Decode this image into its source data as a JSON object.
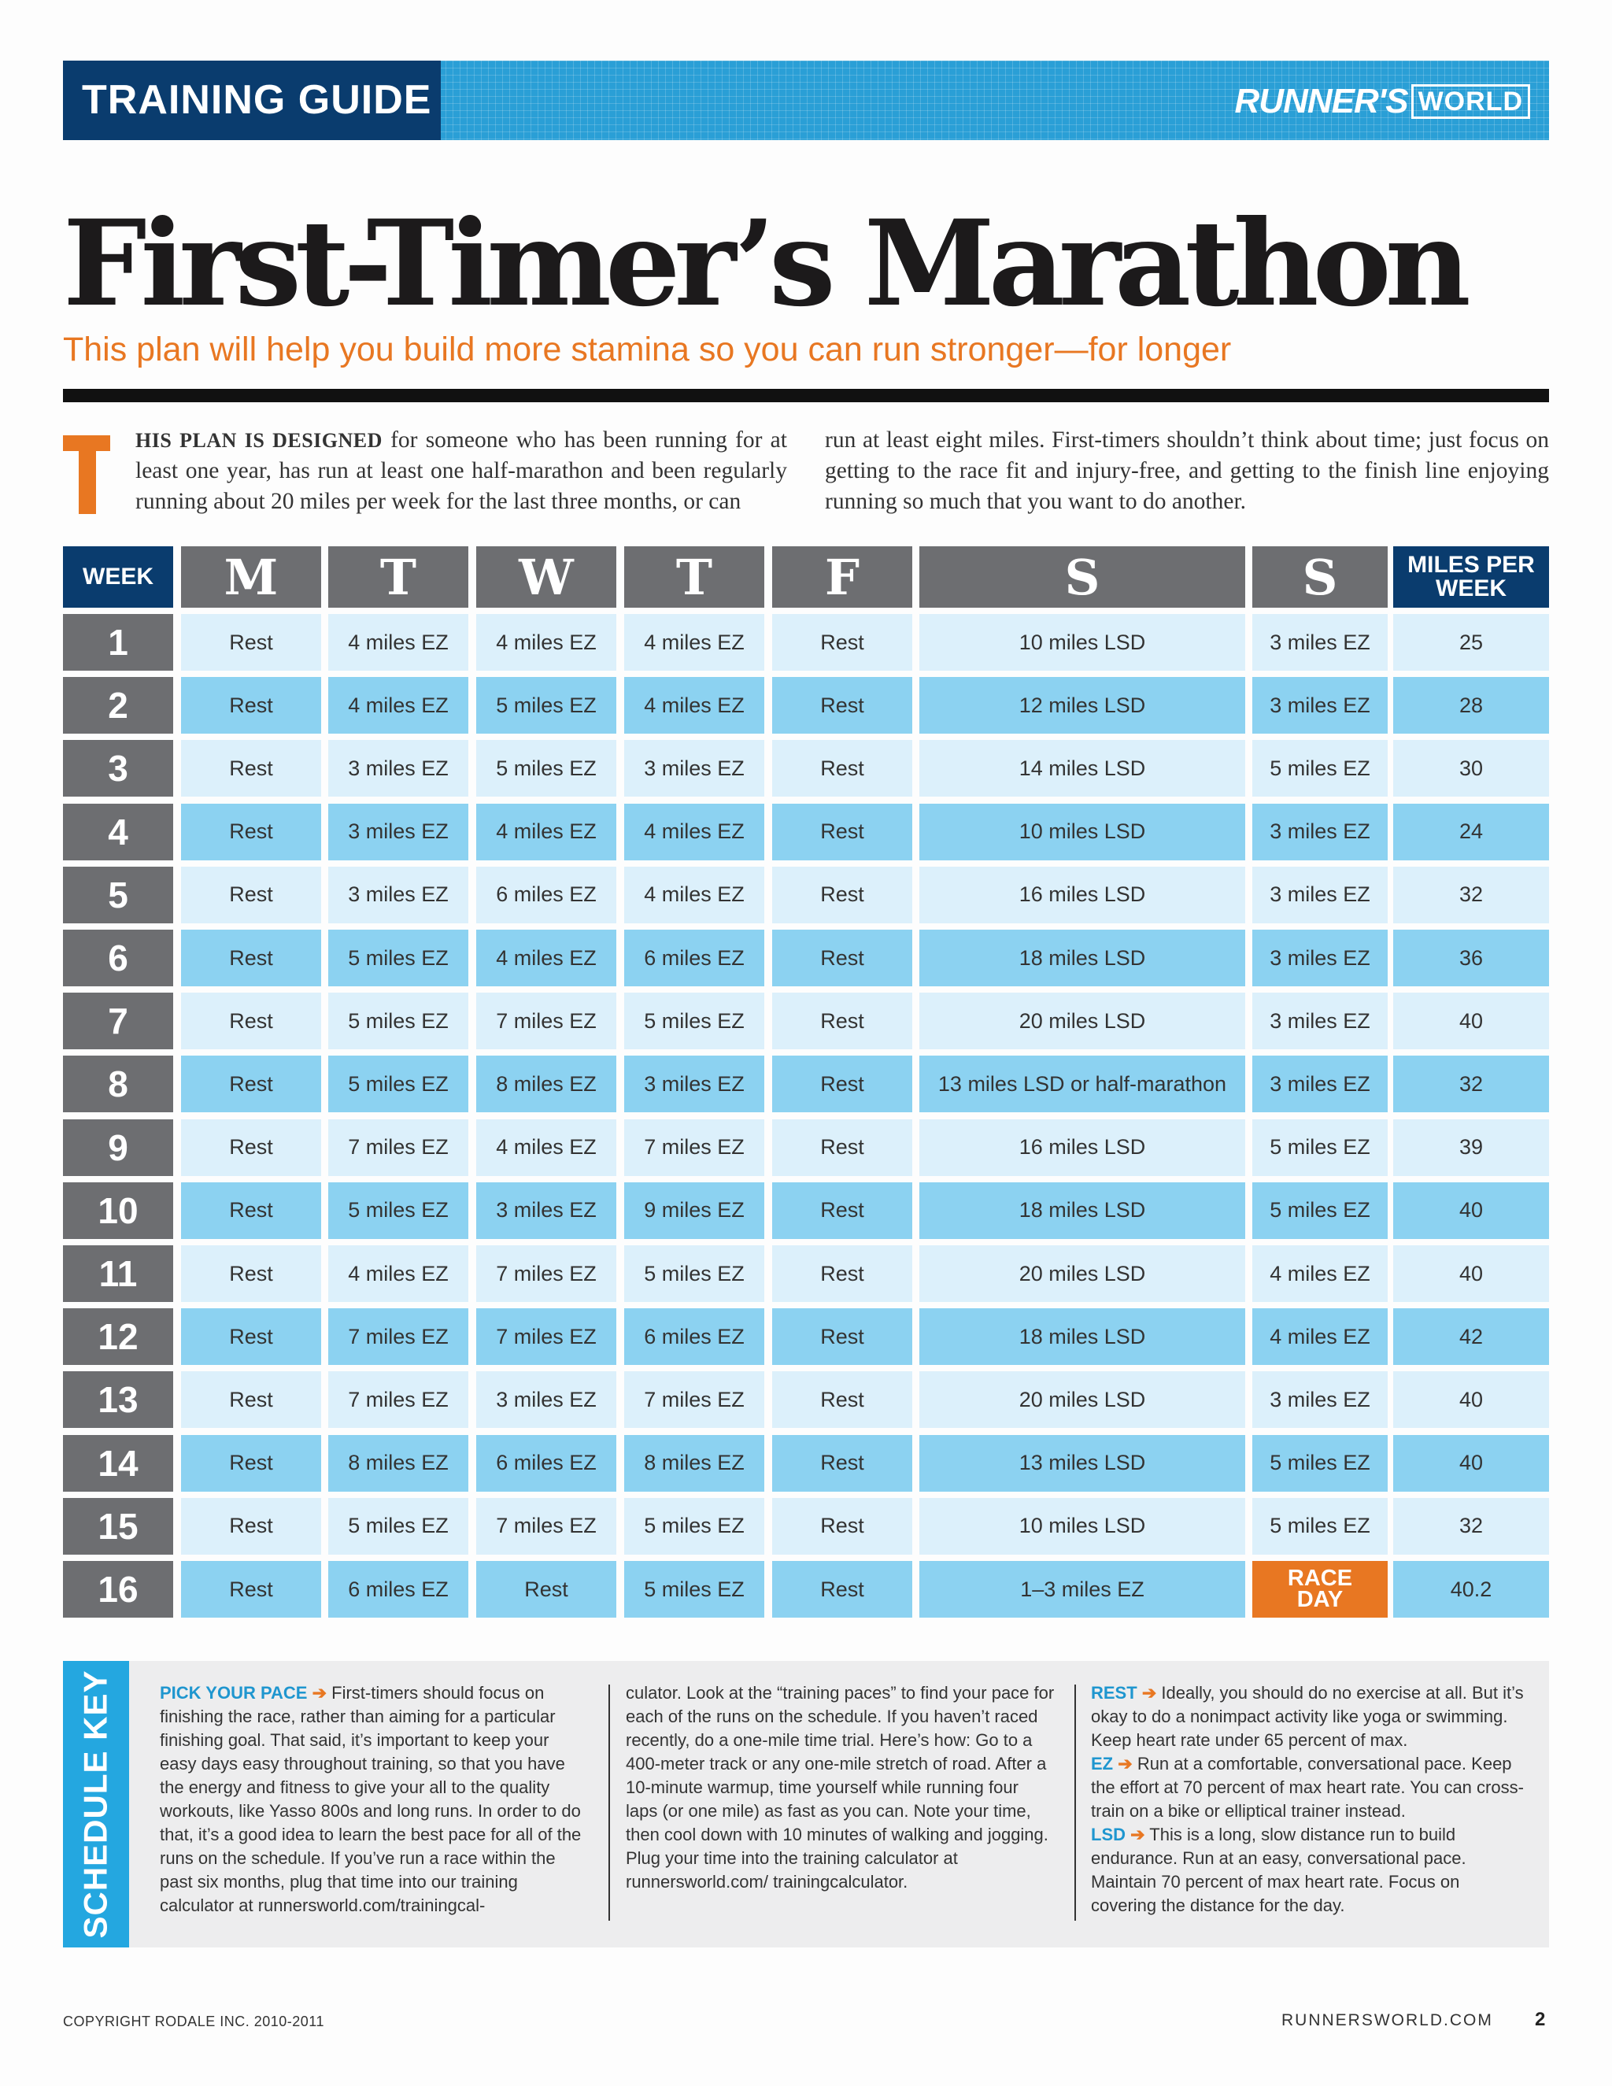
{
  "header": {
    "section_label": "TRAINING GUIDE",
    "brand_main": "RUNNER'S",
    "brand_box": "WORLD"
  },
  "title": "First-Timer’s Marathon",
  "subtitle": "This plan will help you build more stamina so you can run stronger—for longer",
  "intro": {
    "drop_cap": "T",
    "lead_in": "HIS PLAN IS DESIGNED",
    "left_text": " for someone who has been running for at least one year, has run at least one half-marathon and been regularly running about 20 miles per week for the last three months, or can",
    "right_text": "run at least eight miles. First-timers shouldn’t think about time; just focus on getting to the race fit and injury-free, and getting to the finish line enjoying running so much that you want to do another."
  },
  "table": {
    "headers": [
      "WEEK",
      "M",
      "T",
      "W",
      "T",
      "F",
      "S",
      "S",
      "MILES PER WEEK"
    ],
    "rows": [
      [
        "1",
        "Rest",
        "4 miles EZ",
        "4 miles EZ",
        "4 miles EZ",
        "Rest",
        "10 miles LSD",
        "3 miles EZ",
        "25"
      ],
      [
        "2",
        "Rest",
        "4 miles EZ",
        "5 miles EZ",
        "4 miles EZ",
        "Rest",
        "12 miles LSD",
        "3 miles EZ",
        "28"
      ],
      [
        "3",
        "Rest",
        "3 miles EZ",
        "5 miles EZ",
        "3 miles EZ",
        "Rest",
        "14 miles LSD",
        "5 miles EZ",
        "30"
      ],
      [
        "4",
        "Rest",
        "3 miles EZ",
        "4 miles EZ",
        "4 miles EZ",
        "Rest",
        "10 miles LSD",
        "3 miles EZ",
        "24"
      ],
      [
        "5",
        "Rest",
        "3 miles EZ",
        "6 miles EZ",
        "4 miles EZ",
        "Rest",
        "16 miles LSD",
        "3 miles EZ",
        "32"
      ],
      [
        "6",
        "Rest",
        "5 miles EZ",
        "4 miles EZ",
        "6 miles EZ",
        "Rest",
        "18 miles LSD",
        "3 miles EZ",
        "36"
      ],
      [
        "7",
        "Rest",
        "5 miles EZ",
        "7 miles EZ",
        "5 miles EZ",
        "Rest",
        "20 miles LSD",
        "3 miles EZ",
        "40"
      ],
      [
        "8",
        "Rest",
        "5 miles EZ",
        "8 miles EZ",
        "3 miles EZ",
        "Rest",
        "13 miles LSD or half-marathon",
        "3 miles EZ",
        "32"
      ],
      [
        "9",
        "Rest",
        "7 miles EZ",
        "4 miles EZ",
        "7 miles EZ",
        "Rest",
        "16 miles LSD",
        "5 miles EZ",
        "39"
      ],
      [
        "10",
        "Rest",
        "5 miles EZ",
        "3 miles EZ",
        "9 miles EZ",
        "Rest",
        "18 miles LSD",
        "5 miles EZ",
        "40"
      ],
      [
        "11",
        "Rest",
        "4 miles EZ",
        "7 miles EZ",
        "5 miles EZ",
        "Rest",
        "20 miles LSD",
        "4 miles EZ",
        "40"
      ],
      [
        "12",
        "Rest",
        "7 miles EZ",
        "7 miles EZ",
        "6 miles EZ",
        "Rest",
        "18 miles LSD",
        "4 miles EZ",
        "42"
      ],
      [
        "13",
        "Rest",
        "7 miles EZ",
        "3 miles EZ",
        "7 miles EZ",
        "Rest",
        "20 miles LSD",
        "3 miles EZ",
        "40"
      ],
      [
        "14",
        "Rest",
        "8 miles EZ",
        "6 miles EZ",
        "8 miles EZ",
        "Rest",
        "13 miles LSD",
        "5 miles EZ",
        "40"
      ],
      [
        "15",
        "Rest",
        "5 miles EZ",
        "7 miles EZ",
        "5 miles EZ",
        "Rest",
        "10 miles LSD",
        "5 miles EZ",
        "32"
      ],
      [
        "16",
        "Rest",
        "6 miles EZ",
        "Rest",
        "5 miles EZ",
        "Rest",
        "1–3 miles EZ",
        "RACE DAY",
        "40.2"
      ]
    ]
  },
  "schedule_key": {
    "label": "SCHEDULE KEY",
    "pick_your_pace": {
      "heading": "PICK YOUR PACE",
      "text_col1": "First-timers should focus on finishing the race, rather than aiming for a particular finishing goal. That said, it’s important to keep your easy days easy throughout training, so that you have the energy and fitness to give your all to the quality workouts, like Yasso 800s and long runs. In order to do that, it’s a good idea to learn the best pace for all of the runs on the schedule. If you’ve run a race within the past six months, plug that time into our training calculator at runnersworld.com/trainingcal-",
      "text_col2": "culator. Look at the “training paces” to find your pace for each of the runs on the schedule. If you haven’t raced recently, do a one-mile time trial. Here’s how: Go to a 400-meter track or any one-mile stretch of road. After a 10-minute warmup, time yourself while running four laps (or one mile) as fast as you can. Note your time, then cool down with 10 minutes of walking and jogging. Plug your time into the training calculator at runnersworld.com/ trainingcalculator."
    },
    "rest": {
      "heading": "REST",
      "text": "Ideally, you should do no exercise at all. But it’s okay to do a nonimpact activity like yoga or swimming. Keep heart rate under 65 percent of max."
    },
    "ez": {
      "heading": "EZ",
      "text": "Run at a comfortable, conversational pace. Keep the effort at 70 percent of max heart rate. You can cross-train on a bike or elliptical trainer instead."
    },
    "lsd": {
      "heading": "LSD",
      "text": "This is a long, slow distance run to build endurance. Run at an easy, conversational pace. Maintain 70 percent of max heart rate. Focus on covering the distance for the day."
    },
    "arrow": "➔"
  },
  "footer": {
    "copyright": "COPYRIGHT RODALE INC. 2010-2011",
    "site": "RUNNERSWORLD.COM",
    "page": "2"
  },
  "colors": {
    "navy": "#0a3c6e",
    "sky_blue": "#2a9fd6",
    "orange": "#e87722",
    "row_light": "#dcf0fb",
    "row_dark": "#8cd2f1",
    "gray": "#6d6e71"
  }
}
